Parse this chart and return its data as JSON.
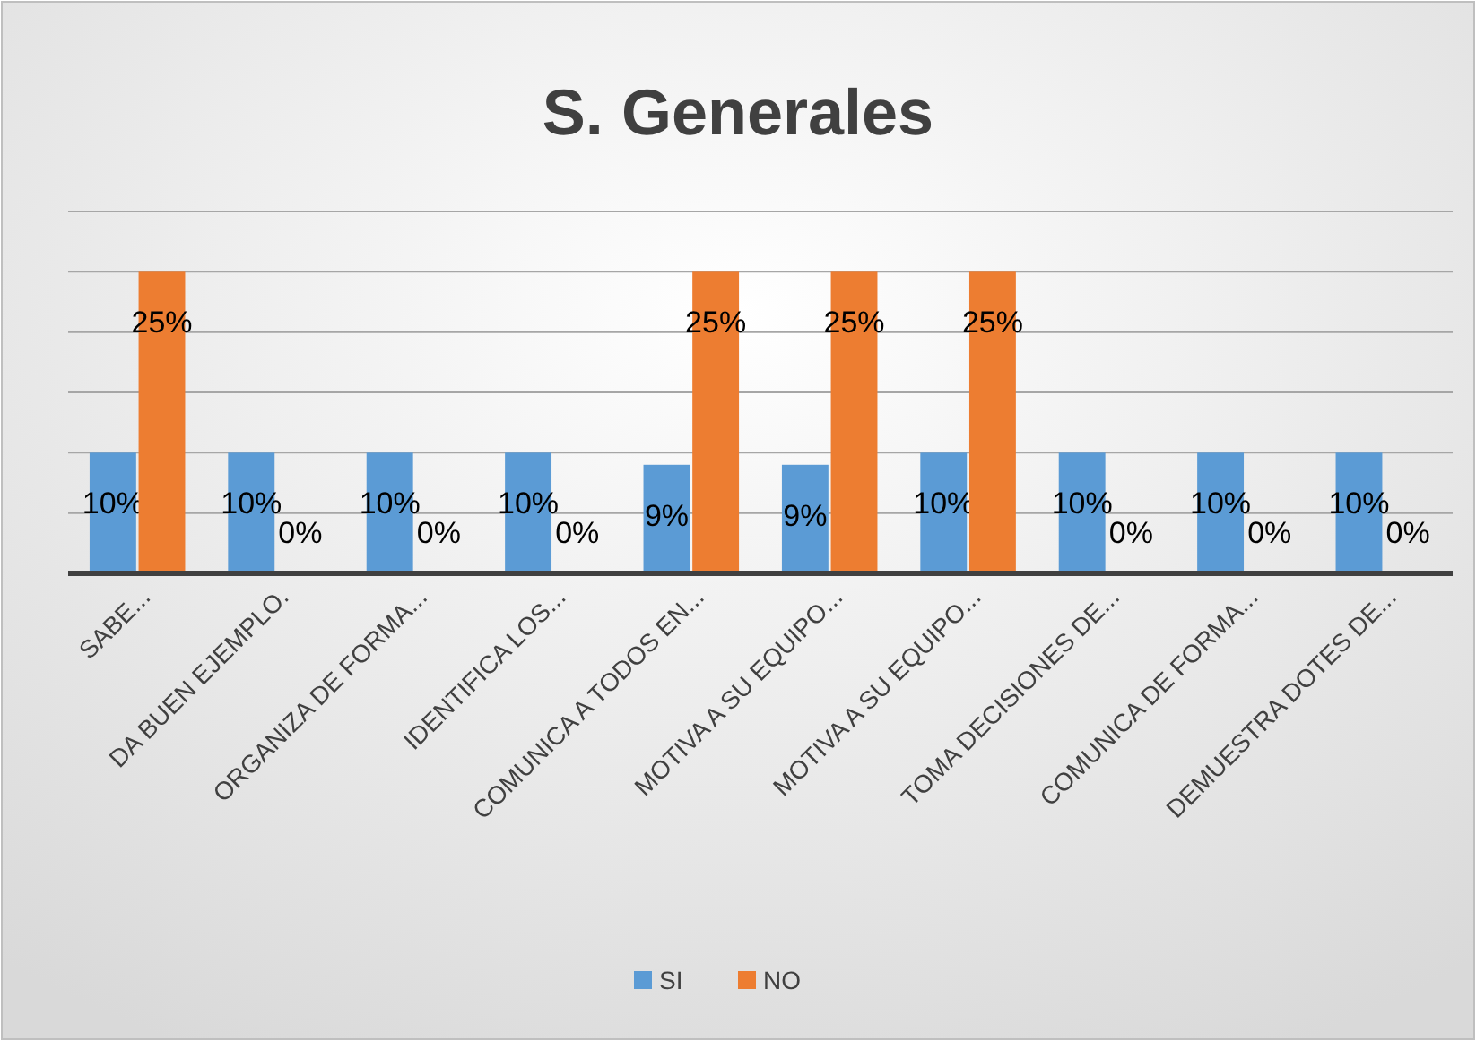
{
  "chart_data": {
    "type": "bar",
    "title": "S. Generales",
    "categories": [
      "SABE...",
      "DA BUEN EJEMPLO.",
      "ORGANIZA DE FORMA...",
      "IDENTIFICA LOS...",
      "COMUNICA A TODOS EN...",
      "MOTIVA A SU EQUIPO...",
      "MOTIVA A SU EQUIPO...",
      "TOMA DECISIONES DE...",
      "COMUNICA DE FORMA...",
      "DEMUESTRA DOTES DE..."
    ],
    "series": [
      {
        "name": "SI",
        "color": "#5b9bd5",
        "values": [
          10,
          10,
          10,
          10,
          9,
          9,
          10,
          10,
          10,
          10
        ],
        "value_labels": [
          "10%",
          "10%",
          "10%",
          "10%",
          "9%",
          "9%",
          "10%",
          "10%",
          "10%",
          "10%"
        ]
      },
      {
        "name": "NO",
        "color": "#ed7d31",
        "values": [
          25,
          0,
          0,
          0,
          25,
          25,
          25,
          0,
          0,
          0
        ],
        "value_labels": [
          "25%",
          "0%",
          "0%",
          "0%",
          "25%",
          "25%",
          "25%",
          "0%",
          "0%",
          "0%"
        ]
      }
    ],
    "tick_labels": "x",
    "grid": "y",
    "legend": "bottom"
  }
}
